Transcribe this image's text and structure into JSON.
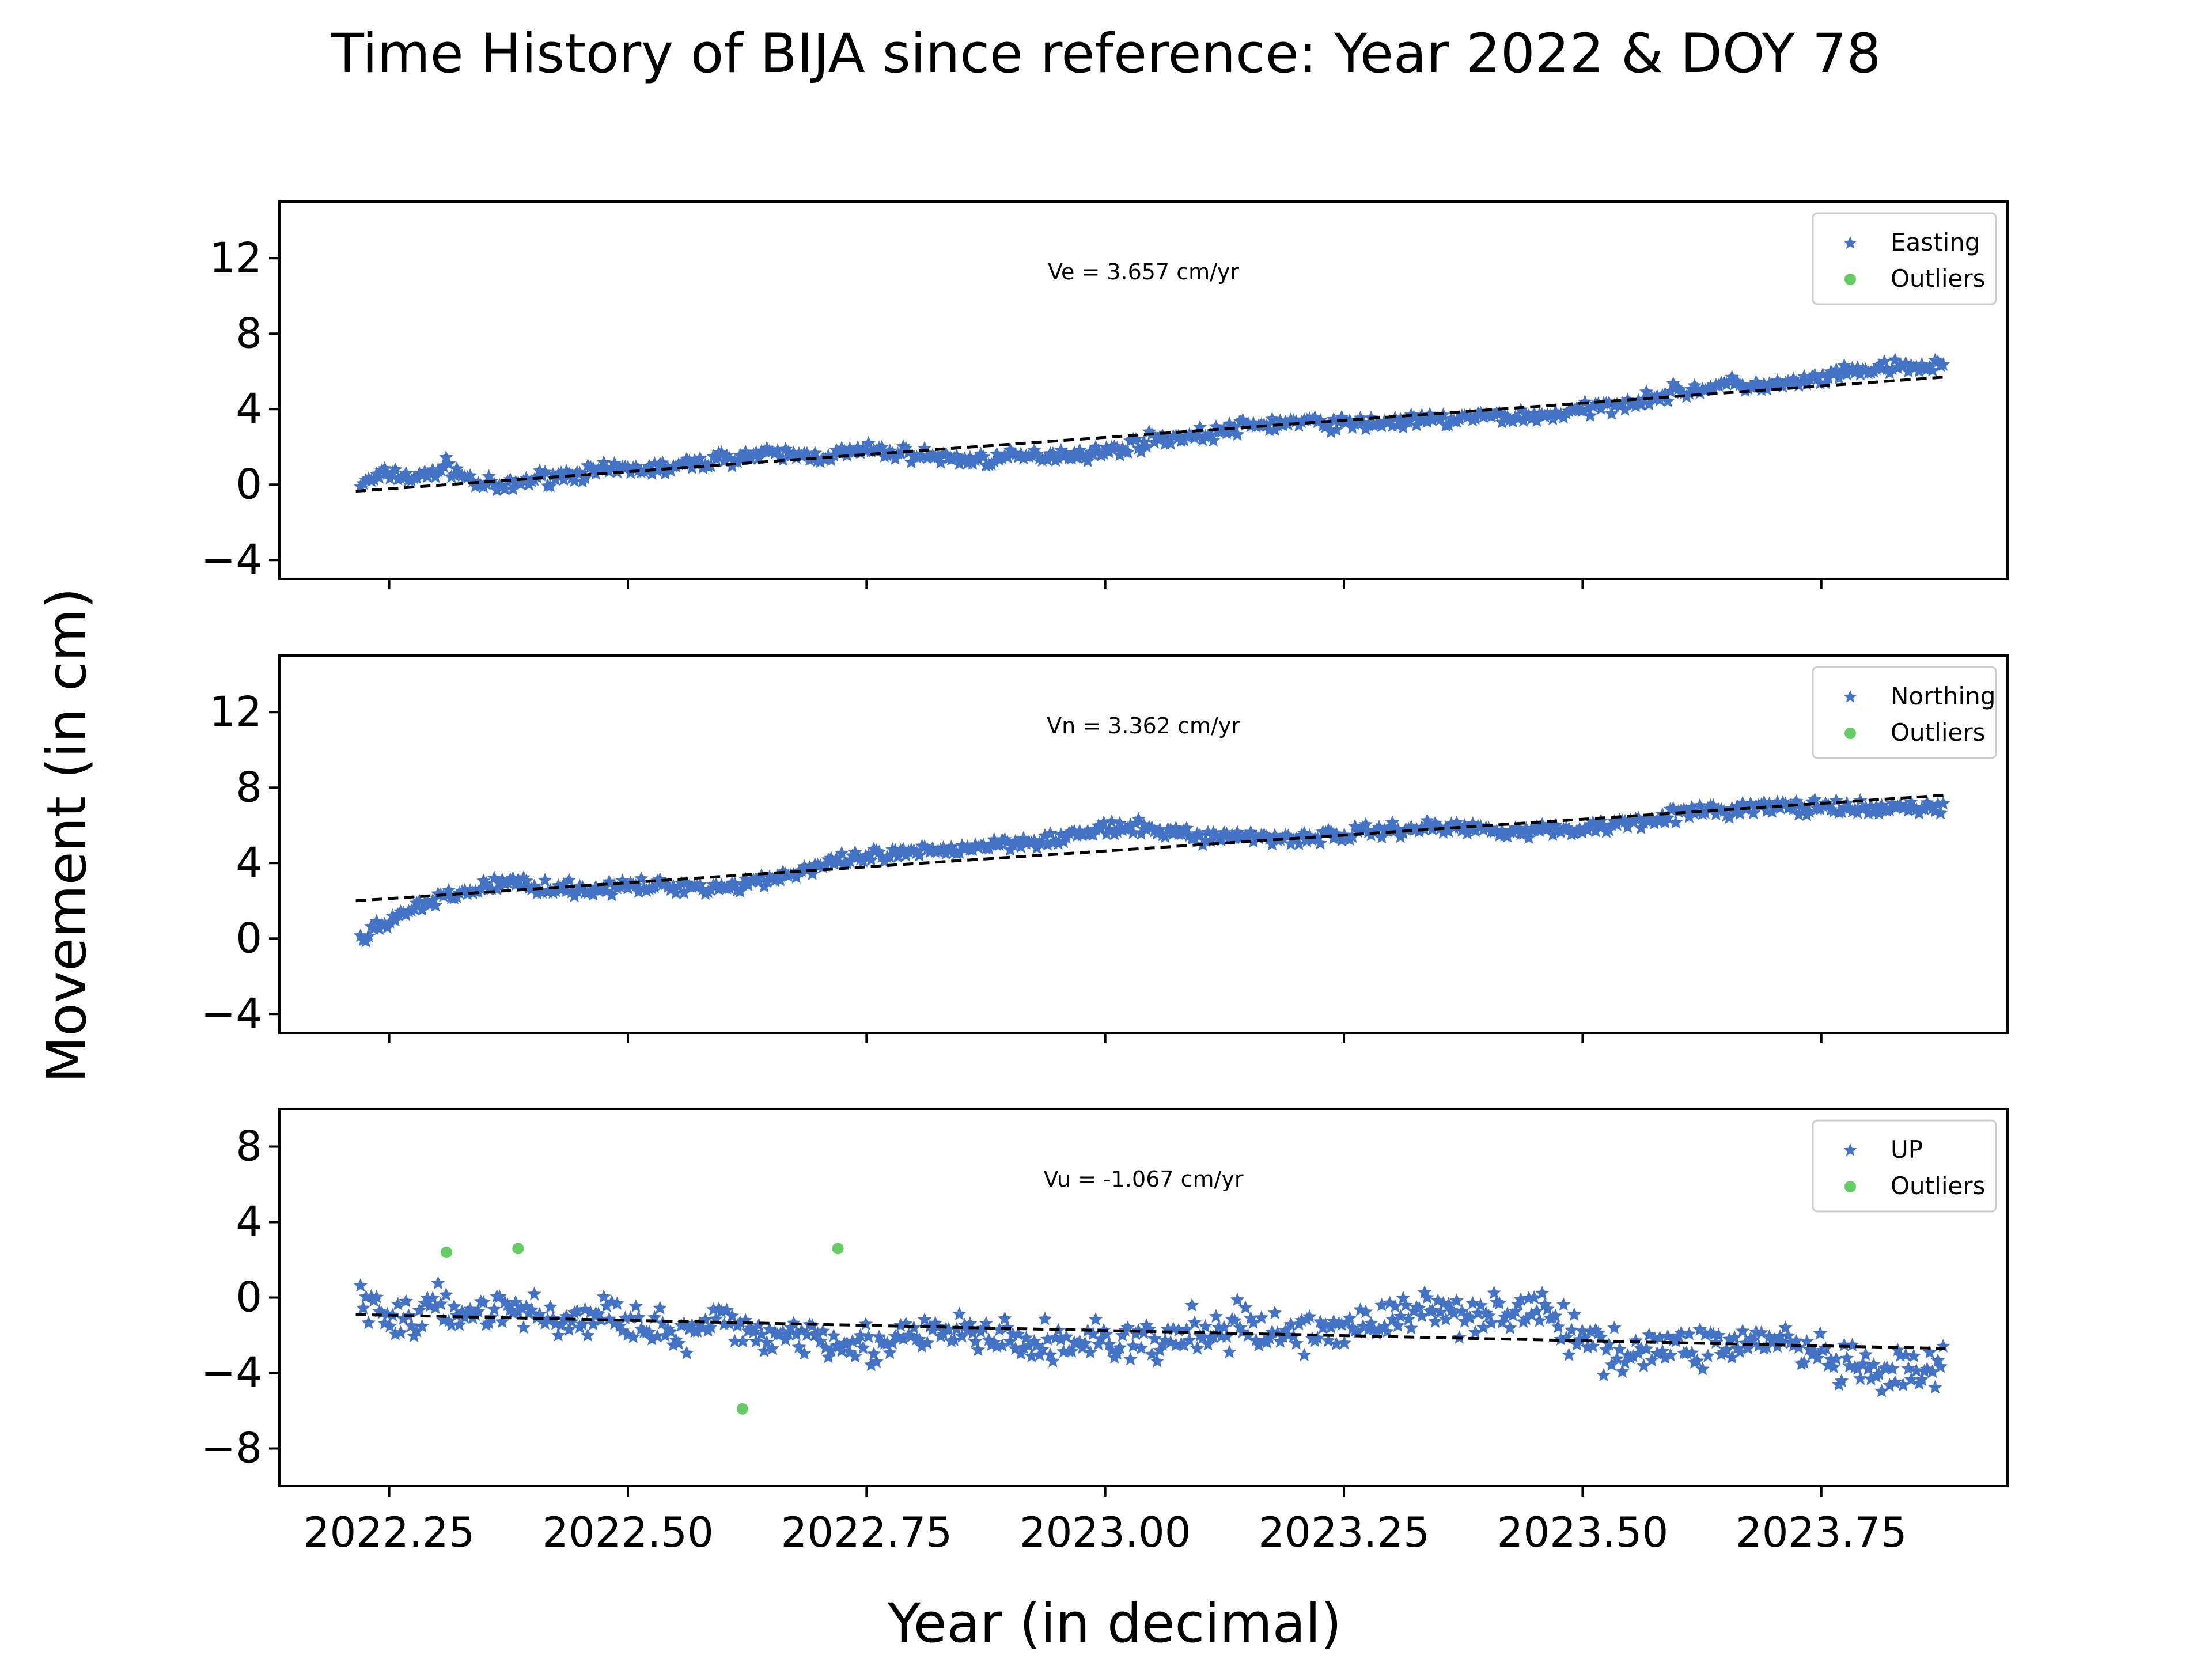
{
  "figure": {
    "title": "Time History of BIJA since reference: Year 2022 & DOY 78",
    "xlabel": "Year (in decimal)",
    "ylabel": "Movement (in cm)"
  },
  "colors": {
    "data": "#4472c4",
    "outlier": "#66cc66",
    "trend": "#000000"
  },
  "chart_data": [
    {
      "type": "scatter",
      "id": "easting",
      "velocity_label": "Ve =  3.657 cm/yr",
      "legend": [
        "Easting",
        "Outliers"
      ],
      "legend_position": "top-right",
      "xlim": [
        2022.135,
        2023.945
      ],
      "ylim": [
        -5,
        15
      ],
      "yticks": [
        -4,
        0,
        4,
        8,
        12
      ],
      "ytick_labels": [
        "−4",
        "0",
        "4",
        "8",
        "12"
      ],
      "xticks": [
        2022.25,
        2022.5,
        2022.75,
        2023.0,
        2023.25,
        2023.5,
        2023.75
      ],
      "trend": {
        "x": [
          2022.215,
          2023.88
        ],
        "y": [
          -0.35,
          5.7
        ]
      },
      "series": [
        {
          "name": "Easting",
          "x": [
            2022.22,
            2022.25,
            2022.28,
            2022.31,
            2022.34,
            2022.37,
            2022.4,
            2022.45,
            2022.5,
            2022.55,
            2022.6,
            2022.65,
            2022.7,
            2022.75,
            2022.8,
            2022.85,
            2022.9,
            2022.95,
            2023.0,
            2023.05,
            2023.1,
            2023.15,
            2023.2,
            2023.25,
            2023.3,
            2023.35,
            2023.4,
            2023.45,
            2023.5,
            2023.55,
            2023.6,
            2023.65,
            2023.7,
            2023.75,
            2023.8,
            2023.85,
            2023.88
          ],
          "y": [
            0.0,
            0.6,
            0.3,
            1.0,
            0.1,
            -0.2,
            0.3,
            0.6,
            0.8,
            0.9,
            1.4,
            1.6,
            1.5,
            1.8,
            1.6,
            1.3,
            1.4,
            1.6,
            1.7,
            2.4,
            2.6,
            3.1,
            3.3,
            3.2,
            3.3,
            3.4,
            3.6,
            3.6,
            3.9,
            4.4,
            4.9,
            5.3,
            5.2,
            5.6,
            6.1,
            6.2,
            6.3
          ]
        },
        {
          "name": "Outliers",
          "x": [],
          "y": []
        }
      ]
    },
    {
      "type": "scatter",
      "id": "northing",
      "velocity_label": "Vn =  3.362 cm/yr",
      "legend": [
        "Northing",
        "Outliers"
      ],
      "legend_position": "top-right",
      "xlim": [
        2022.135,
        2023.945
      ],
      "ylim": [
        -5,
        15
      ],
      "yticks": [
        -4,
        0,
        4,
        8,
        12
      ],
      "ytick_labels": [
        "−4",
        "0",
        "4",
        "8",
        "12"
      ],
      "xticks": [
        2022.25,
        2022.5,
        2022.75,
        2023.0,
        2023.25,
        2023.5,
        2023.75
      ],
      "trend": {
        "x": [
          2022.215,
          2023.88
        ],
        "y": [
          2.0,
          7.6
        ]
      },
      "series": [
        {
          "name": "Northing",
          "x": [
            2022.22,
            2022.25,
            2022.28,
            2022.31,
            2022.34,
            2022.37,
            2022.4,
            2022.45,
            2022.5,
            2022.55,
            2022.6,
            2022.65,
            2022.7,
            2022.75,
            2022.8,
            2022.85,
            2022.9,
            2022.95,
            2023.0,
            2023.05,
            2023.1,
            2023.15,
            2023.2,
            2023.25,
            2023.3,
            2023.35,
            2023.4,
            2023.45,
            2023.5,
            2023.55,
            2023.6,
            2023.65,
            2023.7,
            2023.75,
            2023.8,
            2023.85,
            2023.88
          ],
          "y": [
            0.0,
            1.0,
            1.6,
            2.2,
            2.6,
            3.0,
            2.8,
            2.6,
            2.7,
            2.8,
            2.7,
            3.2,
            3.8,
            4.3,
            4.5,
            4.8,
            5.1,
            5.3,
            5.8,
            5.8,
            5.4,
            5.4,
            5.3,
            5.5,
            5.8,
            5.9,
            5.8,
            5.7,
            5.8,
            6.2,
            6.6,
            6.8,
            7.0,
            6.9,
            6.8,
            7.0,
            6.9
          ]
        },
        {
          "name": "Outliers",
          "x": [],
          "y": []
        }
      ]
    },
    {
      "type": "scatter",
      "id": "up",
      "velocity_label": "Vu = -1.067 cm/yr",
      "legend": [
        "UP",
        "Outliers"
      ],
      "legend_position": "top-right",
      "xlim": [
        2022.135,
        2023.945
      ],
      "ylim": [
        -10,
        10
      ],
      "yticks": [
        -8,
        -4,
        0,
        4,
        8
      ],
      "ytick_labels": [
        "−8",
        "−4",
        "0",
        "4",
        "8"
      ],
      "xticks": [
        2022.25,
        2022.5,
        2022.75,
        2023.0,
        2023.25,
        2023.5,
        2023.75
      ],
      "xtick_labels": [
        "2022.25",
        "2022.50",
        "2022.75",
        "2023.00",
        "2023.25",
        "2023.50",
        "2023.75"
      ],
      "trend": {
        "x": [
          2022.215,
          2023.88
        ],
        "y": [
          -0.9,
          -2.7
        ]
      },
      "series": [
        {
          "name": "UP",
          "x": [
            2022.22,
            2022.25,
            2022.28,
            2022.31,
            2022.34,
            2022.37,
            2022.4,
            2022.45,
            2022.5,
            2022.55,
            2022.6,
            2022.65,
            2022.7,
            2022.75,
            2022.8,
            2022.85,
            2022.9,
            2022.95,
            2023.0,
            2023.05,
            2023.1,
            2023.15,
            2023.2,
            2023.25,
            2023.3,
            2023.35,
            2023.4,
            2023.45,
            2023.5,
            2023.55,
            2023.6,
            2023.65,
            2023.7,
            2023.75,
            2023.8,
            2023.85,
            2023.88
          ],
          "y": [
            0.0,
            -1.2,
            -1.0,
            -0.6,
            -0.8,
            -0.5,
            -0.9,
            -1.3,
            -0.8,
            -2.2,
            -1.4,
            -2.0,
            -1.8,
            -2.6,
            -2.2,
            -1.8,
            -2.4,
            -2.5,
            -2.2,
            -2.6,
            -1.8,
            -1.6,
            -2.0,
            -1.5,
            -1.1,
            -0.6,
            -0.8,
            -0.5,
            -2.4,
            -2.8,
            -2.6,
            -2.5,
            -2.2,
            -3.2,
            -4.2,
            -4.0,
            -3.8
          ]
        },
        {
          "name": "Outliers",
          "x": [
            2022.31,
            2022.385,
            2022.62,
            2022.72
          ],
          "y": [
            2.4,
            2.6,
            -5.9,
            2.6
          ]
        }
      ]
    }
  ]
}
